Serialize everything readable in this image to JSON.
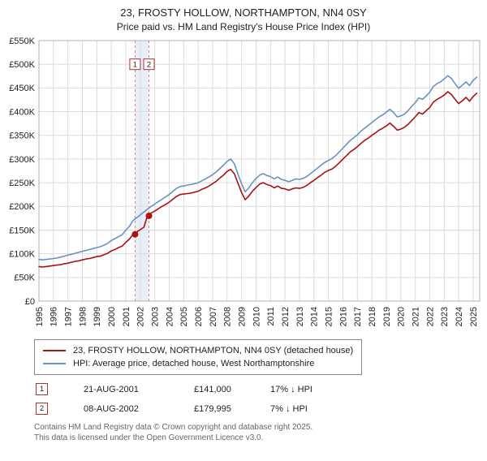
{
  "title": "23, FROSTY HOLLOW, NORTHAMPTON, NN4 0SY",
  "subtitle": "Price paid vs. HM Land Registry's House Price Index (HPI)",
  "chart_data": {
    "type": "line",
    "unit": "GBP thousands",
    "x_start": 1995.0,
    "x_step": 0.25,
    "x_axis_years": [
      1995,
      1996,
      1997,
      1998,
      1999,
      2000,
      2001,
      2002,
      2003,
      2004,
      2005,
      2006,
      2007,
      2008,
      2009,
      2010,
      2011,
      2012,
      2013,
      2014,
      2015,
      2016,
      2017,
      2018,
      2019,
      2020,
      2021,
      2022,
      2023,
      2024,
      2025
    ],
    "ylim": [
      0,
      550
    ],
    "ytick_step": 50,
    "ytick_labels": [
      "£0",
      "£50K",
      "£100K",
      "£150K",
      "£200K",
      "£250K",
      "£300K",
      "£350K",
      "£400K",
      "£450K",
      "£500K",
      "£550K"
    ],
    "grid": true,
    "band_color": "#e8eef8",
    "marker_box_y": 500,
    "series": [
      {
        "key": "property-price-line",
        "name": "23, FROSTY HOLLOW, NORTHAMPTON, NN4 0SY (detached house)",
        "color": "#aa1111",
        "values": [
          73,
          72,
          73,
          74,
          75,
          76,
          77,
          79,
          80,
          82,
          84,
          85,
          87,
          89,
          90,
          92,
          94,
          95,
          98,
          101,
          106,
          109,
          113,
          116,
          124,
          131,
          141,
          146,
          151,
          156,
          180,
          186,
          190,
          195,
          200,
          204,
          209,
          215,
          221,
          225,
          226,
          227,
          228,
          230,
          232,
          236,
          239,
          243,
          248,
          253,
          260,
          266,
          274,
          278,
          269,
          249,
          229,
          214,
          222,
          232,
          240,
          247,
          250,
          246,
          244,
          239,
          243,
          238,
          237,
          234,
          237,
          239,
          238,
          240,
          244,
          250,
          255,
          261,
          266,
          272,
          276,
          279,
          285,
          292,
          300,
          307,
          315,
          320,
          326,
          333,
          339,
          344,
          350,
          355,
          361,
          365,
          370,
          376,
          369,
          361,
          363,
          367,
          373,
          381,
          389,
          398,
          395,
          402,
          409,
          420,
          426,
          430,
          435,
          442,
          436,
          426,
          417,
          423,
          430,
          422,
          432,
          439
        ]
      },
      {
        "key": "hpi-line",
        "name": "HPI: Average price, detached house, West Northamptonshire",
        "color": "#6892c4",
        "values": [
          88,
          87,
          88,
          89,
          90,
          91,
          93,
          95,
          97,
          99,
          101,
          103,
          105,
          107,
          109,
          111,
          113,
          115,
          118,
          122,
          128,
          132,
          136,
          140,
          150,
          158,
          170,
          176,
          182,
          188,
          194,
          200,
          205,
          210,
          215,
          220,
          225,
          232,
          238,
          242,
          243,
          245,
          246,
          248,
          250,
          254,
          258,
          262,
          267,
          273,
          280,
          287,
          295,
          300,
          290,
          268,
          247,
          231,
          239,
          250,
          259,
          266,
          269,
          265,
          263,
          258,
          262,
          257,
          255,
          252,
          255,
          258,
          257,
          259,
          263,
          269,
          275,
          281,
          287,
          293,
          297,
          301,
          307,
          315,
          323,
          331,
          339,
          345,
          351,
          359,
          365,
          371,
          377,
          383,
          389,
          393,
          399,
          405,
          398,
          389,
          391,
          395,
          402,
          411,
          419,
          429,
          426,
          433,
          441,
          453,
          459,
          463,
          469,
          476,
          470,
          459,
          449,
          456,
          463,
          455,
          466,
          473
        ]
      }
    ],
    "sales": [
      {
        "label": "1",
        "x": 2001.64,
        "value": 141.0
      },
      {
        "label": "2",
        "x": 2002.6,
        "value": 179.995
      }
    ]
  },
  "legend": {
    "items": [
      {
        "label": "23, FROSTY HOLLOW, NORTHAMPTON, NN4 0SY (detached house)",
        "color": "#aa1111"
      },
      {
        "label": "HPI: Average price, detached house, West Northamptonshire",
        "color": "#6892c4"
      }
    ]
  },
  "transactions": [
    {
      "num": "1",
      "date": "21-AUG-2001",
      "price": "£141,000",
      "hpi": "17% ↓ HPI"
    },
    {
      "num": "2",
      "date": "08-AUG-2002",
      "price": "£179,995",
      "hpi": "7% ↓ HPI"
    }
  ],
  "footer": {
    "line1": "Contains HM Land Registry data © Crown copyright and database right 2025.",
    "line2": "This data is licensed under the Open Government Licence v3.0."
  }
}
